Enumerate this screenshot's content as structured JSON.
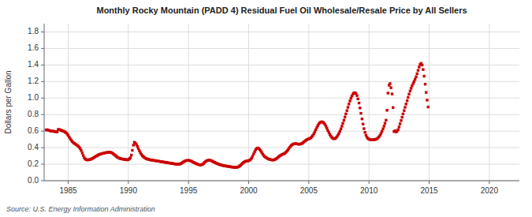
{
  "chart_data": {
    "type": "scatter",
    "title": "Monthly Rocky Mountain (PADD 4) Residual Fuel Oil Wholesale/Resale Price by All Sellers",
    "y_label": "Dollars per Gallon",
    "source": "Source: U.S. Energy Information Administration",
    "color": "#cc0000",
    "marker": "square",
    "grid": true,
    "xlim": [
      1983.0,
      2022.5
    ],
    "ylim": [
      0.0,
      1.9
    ],
    "xticks": [
      1985,
      1990,
      1995,
      2000,
      2005,
      2010,
      2015,
      2020
    ],
    "yticks": [
      {
        "value": 0.0,
        "label": "0.0"
      },
      0.2,
      0.4,
      0.6,
      0.8,
      {
        "value": 1.0,
        "label": "1.0"
      },
      1.2,
      1.4,
      1.6,
      1.8
    ],
    "x": [
      1983.17,
      1983.25,
      1983.33,
      1983.42,
      1983.5,
      1983.58,
      1983.67,
      1983.75,
      1983.83,
      1983.92,
      1984.0,
      1984.08,
      1984.17,
      1984.25,
      1984.33,
      1984.42,
      1984.5,
      1984.58,
      1984.67,
      1984.75,
      1984.83,
      1984.92,
      1985.0,
      1985.08,
      1985.17,
      1985.25,
      1985.33,
      1985.42,
      1985.5,
      1985.58,
      1985.67,
      1985.75,
      1985.83,
      1985.92,
      1986.0,
      1986.08,
      1986.17,
      1986.25,
      1986.33,
      1986.42,
      1986.5,
      1986.58,
      1986.67,
      1986.75,
      1986.83,
      1986.92,
      1987.0,
      1987.08,
      1987.17,
      1987.25,
      1987.33,
      1987.42,
      1987.5,
      1987.58,
      1987.67,
      1987.75,
      1987.83,
      1987.92,
      1988.0,
      1988.08,
      1988.17,
      1988.25,
      1988.33,
      1988.42,
      1988.5,
      1988.58,
      1988.67,
      1988.75,
      1988.83,
      1988.92,
      1989.0,
      1989.08,
      1989.17,
      1989.25,
      1989.33,
      1989.42,
      1989.5,
      1989.58,
      1989.67,
      1989.75,
      1989.83,
      1989.92,
      1990.0,
      1990.08,
      1990.17,
      1990.25,
      1990.33,
      1990.42,
      1990.5,
      1990.58,
      1990.67,
      1990.75,
      1990.83,
      1990.92,
      1991.0,
      1991.08,
      1991.17,
      1991.25,
      1991.33,
      1991.42,
      1991.5,
      1991.58,
      1991.67,
      1991.75,
      1991.83,
      1991.92,
      1992.0,
      1992.08,
      1992.17,
      1992.25,
      1992.33,
      1992.42,
      1992.5,
      1992.58,
      1992.67,
      1992.75,
      1992.83,
      1992.92,
      1993.0,
      1993.08,
      1993.17,
      1993.25,
      1993.33,
      1993.42,
      1993.5,
      1993.58,
      1993.67,
      1993.75,
      1993.83,
      1993.92,
      1994.0,
      1994.08,
      1994.17,
      1994.25,
      1994.33,
      1994.42,
      1994.5,
      1994.58,
      1994.67,
      1994.75,
      1994.83,
      1994.92,
      1995.0,
      1995.08,
      1995.17,
      1995.25,
      1995.33,
      1995.42,
      1995.5,
      1995.58,
      1995.67,
      1995.75,
      1995.83,
      1995.92,
      1996.0,
      1996.08,
      1996.17,
      1996.25,
      1996.33,
      1996.42,
      1996.5,
      1996.58,
      1996.67,
      1996.75,
      1996.83,
      1996.92,
      1997.0,
      1997.08,
      1997.17,
      1997.25,
      1997.33,
      1997.42,
      1997.5,
      1997.58,
      1997.67,
      1997.75,
      1997.83,
      1997.92,
      1998.0,
      1998.08,
      1998.17,
      1998.25,
      1998.33,
      1998.42,
      1998.5,
      1998.58,
      1998.67,
      1998.75,
      1998.83,
      1998.92,
      1999.0,
      1999.08,
      1999.17,
      1999.25,
      1999.33,
      1999.42,
      1999.5,
      1999.58,
      1999.67,
      1999.75,
      1999.83,
      1999.92,
      2000.0,
      2000.08,
      2000.17,
      2000.25,
      2000.33,
      2000.42,
      2000.5,
      2000.58,
      2000.67,
      2000.75,
      2000.83,
      2000.92,
      2001.0,
      2001.08,
      2001.17,
      2001.25,
      2001.33,
      2001.42,
      2001.5,
      2001.58,
      2001.67,
      2001.75,
      2001.83,
      2001.92,
      2002.0,
      2002.08,
      2002.17,
      2002.25,
      2002.33,
      2002.42,
      2002.5,
      2002.58,
      2002.67,
      2002.75,
      2002.83,
      2002.92,
      2003.0,
      2003.08,
      2003.17,
      2003.25,
      2003.33,
      2003.42,
      2003.5,
      2003.58,
      2003.67,
      2003.75,
      2003.83,
      2003.92,
      2004.0,
      2004.08,
      2004.17,
      2004.25,
      2004.33,
      2004.42,
      2004.5,
      2004.58,
      2004.67,
      2004.75,
      2004.83,
      2004.92,
      2005.0,
      2005.08,
      2005.17,
      2005.25,
      2005.33,
      2005.42,
      2005.5,
      2005.58,
      2005.67,
      2005.75,
      2005.83,
      2005.92,
      2006.0,
      2006.08,
      2006.17,
      2006.25,
      2006.33,
      2006.42,
      2006.5,
      2006.58,
      2006.67,
      2006.75,
      2006.83,
      2006.92,
      2007.0,
      2007.08,
      2007.17,
      2007.25,
      2007.33,
      2007.42,
      2007.5,
      2007.58,
      2007.67,
      2007.75,
      2007.83,
      2007.92,
      2008.0,
      2008.08,
      2008.17,
      2008.25,
      2008.33,
      2008.42,
      2008.5,
      2008.58,
      2008.67,
      2008.75,
      2008.83,
      2008.92,
      2009.0,
      2009.08,
      2009.17,
      2009.25,
      2009.33,
      2009.42,
      2009.5,
      2009.58,
      2009.67,
      2009.75,
      2009.83,
      2009.92,
      2010.0,
      2010.08,
      2010.17,
      2010.25,
      2010.33,
      2010.42,
      2010.5,
      2010.58,
      2010.67,
      2010.75,
      2010.83,
      2010.92,
      2011.0,
      2011.08,
      2011.17,
      2011.25,
      2011.33,
      2011.42,
      2011.5,
      2011.58,
      2011.67,
      2011.75,
      2011.83,
      2011.92,
      2012.0,
      2012.08,
      2012.17,
      2012.25,
      2012.33,
      2012.42,
      2012.5,
      2012.58,
      2012.67,
      2012.75,
      2012.83,
      2012.92,
      2013.0,
      2013.08,
      2013.17,
      2013.25,
      2013.33,
      2013.42,
      2013.5,
      2013.58,
      2013.67,
      2013.75,
      2013.83,
      2013.92,
      2014.0,
      2014.08,
      2014.17,
      2014.25,
      2014.33,
      2014.42,
      2014.5,
      2014.58,
      2014.67,
      2014.75,
      2014.83,
      2014.92
    ],
    "values": [
      0.614,
      0.617,
      0.612,
      0.608,
      0.604,
      0.601,
      0.6,
      0.598,
      0.597,
      0.594,
      0.592,
      0.59,
      0.62,
      0.618,
      0.615,
      0.61,
      0.605,
      0.6,
      0.595,
      0.588,
      0.578,
      0.565,
      0.548,
      0.528,
      0.508,
      0.49,
      0.475,
      0.462,
      0.452,
      0.444,
      0.436,
      0.428,
      0.418,
      0.405,
      0.388,
      0.365,
      0.335,
      0.305,
      0.278,
      0.262,
      0.255,
      0.252,
      0.252,
      0.255,
      0.258,
      0.262,
      0.268,
      0.275,
      0.282,
      0.29,
      0.298,
      0.305,
      0.312,
      0.318,
      0.322,
      0.325,
      0.328,
      0.332,
      0.335,
      0.338,
      0.34,
      0.342,
      0.344,
      0.345,
      0.344,
      0.34,
      0.334,
      0.325,
      0.315,
      0.305,
      0.295,
      0.285,
      0.278,
      0.272,
      0.268,
      0.265,
      0.262,
      0.26,
      0.258,
      0.256,
      0.254,
      0.252,
      0.255,
      0.265,
      0.278,
      0.31,
      0.368,
      0.43,
      0.465,
      0.455,
      0.438,
      0.415,
      0.388,
      0.362,
      0.338,
      0.318,
      0.302,
      0.29,
      0.28,
      0.272,
      0.266,
      0.262,
      0.258,
      0.255,
      0.252,
      0.25,
      0.248,
      0.246,
      0.244,
      0.242,
      0.24,
      0.238,
      0.236,
      0.234,
      0.232,
      0.23,
      0.228,
      0.226,
      0.224,
      0.222,
      0.22,
      0.218,
      0.216,
      0.214,
      0.212,
      0.21,
      0.208,
      0.206,
      0.204,
      0.202,
      0.2,
      0.198,
      0.198,
      0.2,
      0.205,
      0.212,
      0.22,
      0.228,
      0.235,
      0.24,
      0.244,
      0.246,
      0.246,
      0.244,
      0.24,
      0.235,
      0.228,
      0.222,
      0.216,
      0.21,
      0.205,
      0.2,
      0.196,
      0.192,
      0.19,
      0.192,
      0.198,
      0.208,
      0.22,
      0.232,
      0.24,
      0.245,
      0.248,
      0.248,
      0.245,
      0.24,
      0.234,
      0.228,
      0.222,
      0.216,
      0.21,
      0.205,
      0.2,
      0.196,
      0.192,
      0.188,
      0.185,
      0.182,
      0.18,
      0.178,
      0.176,
      0.174,
      0.172,
      0.17,
      0.168,
      0.166,
      0.164,
      0.163,
      0.162,
      0.161,
      0.162,
      0.165,
      0.17,
      0.178,
      0.188,
      0.2,
      0.212,
      0.222,
      0.23,
      0.235,
      0.238,
      0.24,
      0.242,
      0.248,
      0.258,
      0.275,
      0.298,
      0.325,
      0.352,
      0.375,
      0.39,
      0.395,
      0.39,
      0.378,
      0.362,
      0.342,
      0.322,
      0.305,
      0.292,
      0.282,
      0.274,
      0.268,
      0.262,
      0.258,
      0.255,
      0.252,
      0.25,
      0.252,
      0.256,
      0.262,
      0.27,
      0.28,
      0.29,
      0.3,
      0.308,
      0.315,
      0.32,
      0.325,
      0.332,
      0.342,
      0.355,
      0.37,
      0.388,
      0.405,
      0.42,
      0.432,
      0.44,
      0.445,
      0.448,
      0.448,
      0.446,
      0.444,
      0.442,
      0.442,
      0.445,
      0.45,
      0.458,
      0.468,
      0.478,
      0.488,
      0.496,
      0.502,
      0.506,
      0.512,
      0.52,
      0.532,
      0.548,
      0.568,
      0.592,
      0.618,
      0.645,
      0.668,
      0.688,
      0.702,
      0.71,
      0.712,
      0.708,
      0.698,
      0.682,
      0.66,
      0.635,
      0.608,
      0.582,
      0.558,
      0.538,
      0.522,
      0.512,
      0.508,
      0.51,
      0.518,
      0.532,
      0.55,
      0.572,
      0.598,
      0.628,
      0.66,
      0.695,
      0.732,
      0.77,
      0.808,
      0.848,
      0.888,
      0.928,
      0.965,
      0.998,
      1.025,
      1.048,
      1.062,
      1.065,
      1.055,
      1.03,
      0.99,
      0.94,
      0.88,
      0.815,
      0.748,
      0.685,
      0.63,
      0.585,
      0.55,
      0.525,
      0.51,
      0.502,
      0.498,
      0.496,
      0.495,
      0.495,
      0.496,
      0.498,
      0.502,
      0.508,
      0.518,
      0.532,
      0.55,
      0.572,
      0.598,
      0.628,
      0.66,
      0.695,
      0.732,
      0.852,
      1.06,
      1.155,
      1.175,
      1.125,
      1.05,
      0.885,
      0.595,
      0.605,
      0.59,
      0.598,
      0.618,
      0.65,
      0.688,
      0.728,
      0.768,
      0.808,
      0.848,
      0.888,
      0.928,
      0.968,
      1.008,
      1.048,
      1.085,
      1.118,
      1.148,
      1.175,
      1.2,
      1.228,
      1.258,
      1.295,
      1.335,
      1.375,
      1.405,
      1.42,
      1.4,
      1.345,
      1.265,
      1.168,
      1.068,
      0.975,
      0.892
    ]
  }
}
